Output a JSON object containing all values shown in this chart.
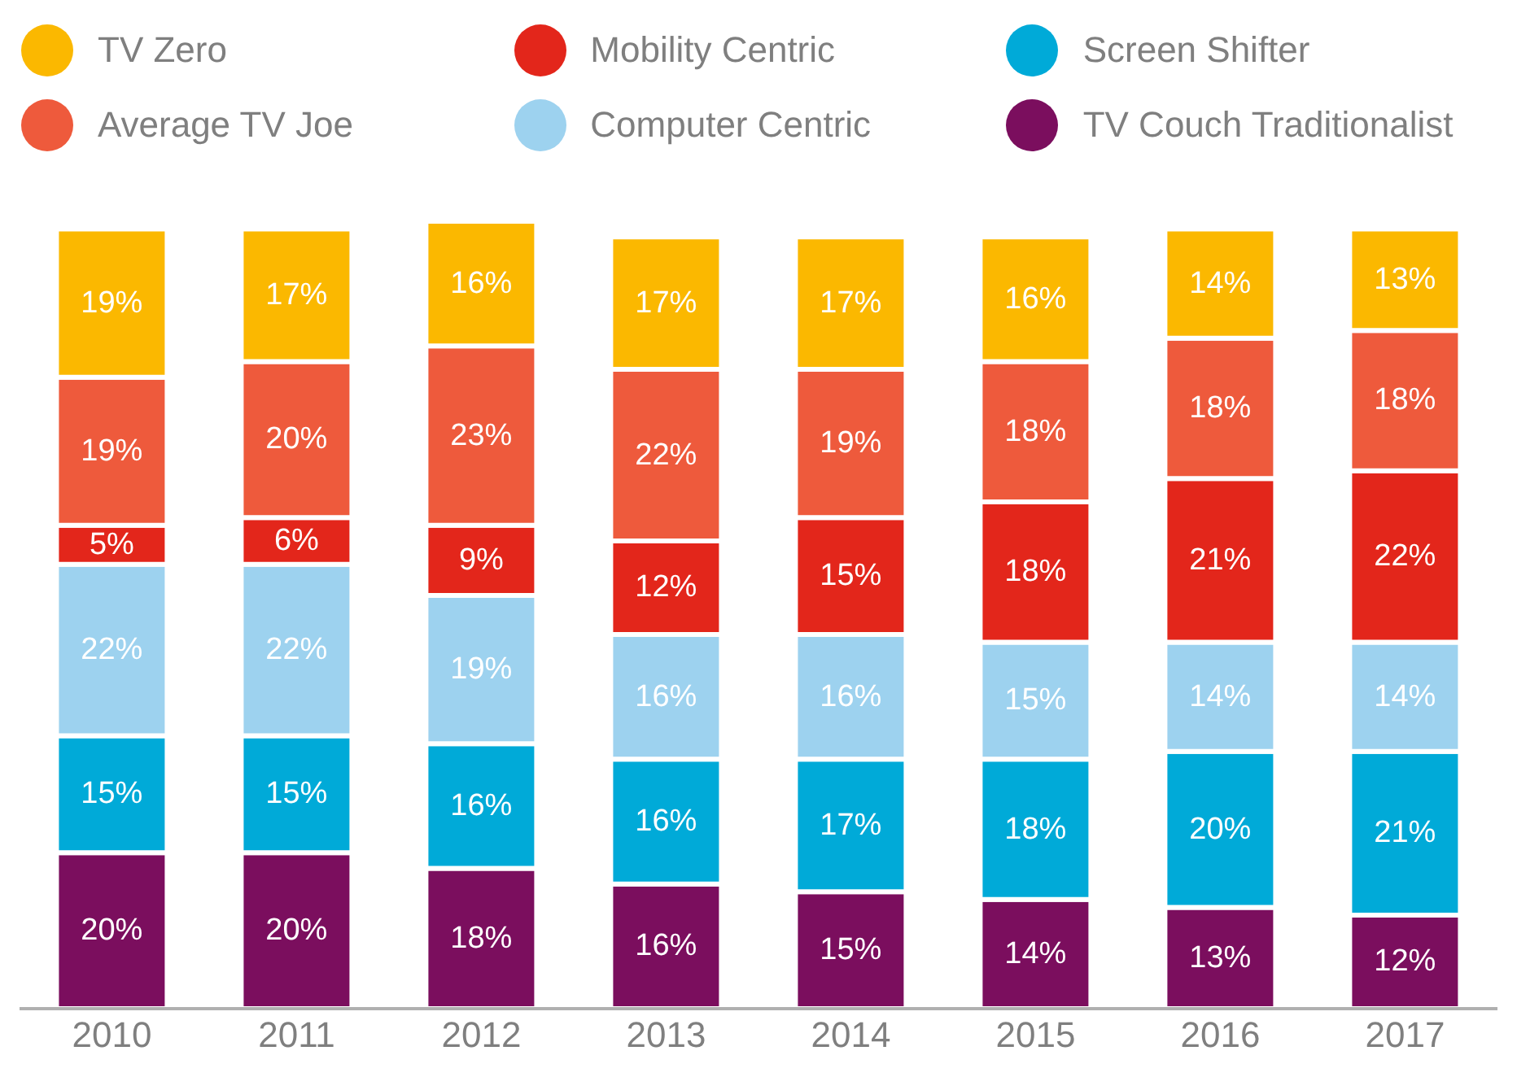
{
  "chart_data": {
    "type": "bar",
    "stacked": true,
    "legend": "top",
    "categories": [
      "2010",
      "2011",
      "2012",
      "2013",
      "2014",
      "2015",
      "2016",
      "2017"
    ],
    "series": [
      {
        "name": "TV Couch Traditionalist",
        "color": "#7b0e5e",
        "values": [
          20,
          20,
          18,
          16,
          15,
          14,
          13,
          12
        ],
        "value_labels": [
          "20%",
          "20%",
          "18%",
          "16%",
          "15%",
          "14%",
          "13%",
          "12%"
        ]
      },
      {
        "name": "Screen Shifter",
        "color": "#00aad8",
        "values": [
          15,
          15,
          16,
          16,
          17,
          18,
          20,
          21
        ],
        "value_labels": [
          "15%",
          "15%",
          "16%",
          "16%",
          "17%",
          "18%",
          "20%",
          "21%"
        ]
      },
      {
        "name": "Computer Centric",
        "color": "#9dd2ef",
        "values": [
          22,
          22,
          19,
          16,
          16,
          15,
          14,
          14
        ],
        "value_labels": [
          "22%",
          "22%",
          "19%",
          "16%",
          "16%",
          "15%",
          "14%",
          "14%"
        ]
      },
      {
        "name": "Mobility Centric",
        "color": "#e3261b",
        "values": [
          5,
          6,
          9,
          12,
          15,
          18,
          21,
          22
        ],
        "value_labels": [
          "5%",
          "6%",
          "9%",
          "12%",
          "15%",
          "18%",
          "21%",
          "22%"
        ]
      },
      {
        "name": "Average TV Joe",
        "color": "#ee5a3c",
        "values": [
          19,
          20,
          23,
          22,
          19,
          18,
          18,
          18
        ],
        "value_labels": [
          "19%",
          "20%",
          "23%",
          "22%",
          "19%",
          "18%",
          "18%",
          "18%"
        ]
      },
      {
        "name": "TV Zero",
        "color": "#fbb800",
        "values": [
          19,
          17,
          16,
          17,
          17,
          16,
          14,
          13
        ],
        "value_labels": [
          "19%",
          "17%",
          "16%",
          "17%",
          "17%",
          "16%",
          "14%",
          "13%"
        ]
      }
    ]
  }
}
